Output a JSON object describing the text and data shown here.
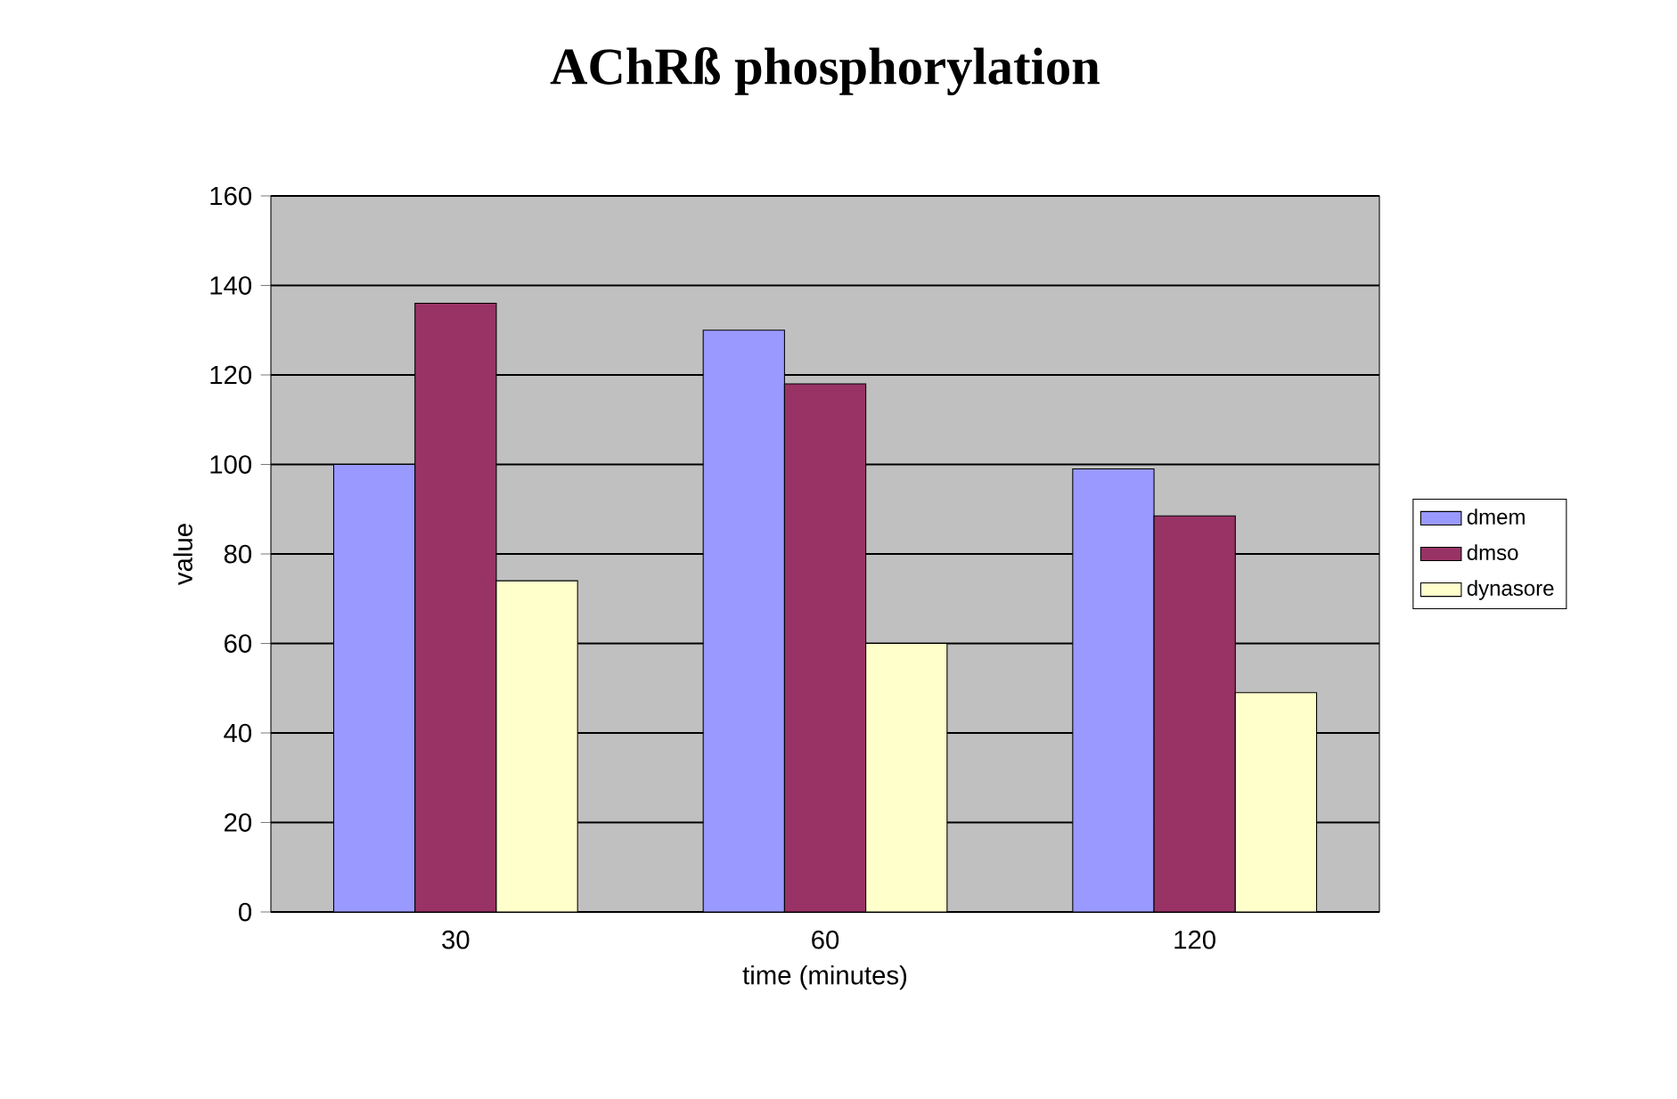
{
  "chart_data": {
    "type": "bar",
    "title": "AChRß phosphorylation",
    "xlabel": "time (minutes)",
    "ylabel": "value",
    "categories": [
      "30",
      "60",
      "120"
    ],
    "series": [
      {
        "name": "dmem",
        "color": "#9999ff",
        "values": [
          100,
          130,
          99
        ]
      },
      {
        "name": "dmso",
        "color": "#993366",
        "values": [
          136,
          118,
          88.5
        ]
      },
      {
        "name": "dynasore",
        "color": "#ffffcc",
        "values": [
          74,
          60,
          49
        ]
      }
    ],
    "ylim": [
      0,
      160
    ],
    "yticks": [
      0,
      20,
      40,
      60,
      80,
      100,
      120,
      140,
      160
    ],
    "grid": "y",
    "legend": "right"
  }
}
